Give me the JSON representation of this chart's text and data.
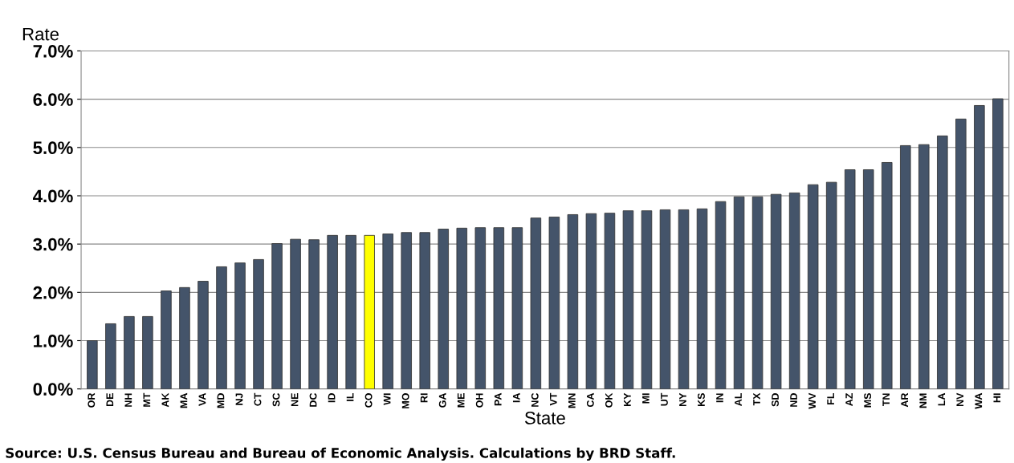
{
  "chart_data": {
    "type": "bar",
    "ylabel": "Rate",
    "xlabel": "State",
    "annotations": [
      "Source: U.S. Census Bureau and Bureau of Economic Analysis. Calculations by BRD Staff."
    ],
    "categories": [
      "OR",
      "DE",
      "NH",
      "MT",
      "AK",
      "MA",
      "VA",
      "MD",
      "NJ",
      "CT",
      "SC",
      "NE",
      "DC",
      "ID",
      "IL",
      "CO",
      "WI",
      "MO",
      "RI",
      "GA",
      "ME",
      "OH",
      "PA",
      "IA",
      "NC",
      "VT",
      "MN",
      "CA",
      "OK",
      "KY",
      "MI",
      "UT",
      "NY",
      "KS",
      "IN",
      "AL",
      "TX",
      "SD",
      "ND",
      "WV",
      "FL",
      "AZ",
      "MS",
      "TN",
      "AR",
      "NM",
      "LA",
      "NV",
      "WA",
      "HI"
    ],
    "values": [
      1.0,
      1.35,
      1.5,
      1.5,
      2.03,
      2.1,
      2.23,
      2.53,
      2.61,
      2.68,
      3.01,
      3.1,
      3.09,
      3.18,
      3.18,
      3.18,
      3.21,
      3.24,
      3.24,
      3.31,
      3.33,
      3.34,
      3.34,
      3.34,
      3.54,
      3.56,
      3.61,
      3.63,
      3.64,
      3.69,
      3.69,
      3.71,
      3.71,
      3.73,
      3.88,
      3.98,
      3.98,
      4.03,
      4.06,
      4.23,
      4.28,
      4.54,
      4.54,
      4.69,
      5.04,
      5.06,
      5.24,
      5.59,
      5.87,
      6.01
    ],
    "colors": [
      "#44546a",
      "#44546a",
      "#44546a",
      "#44546a",
      "#44546a",
      "#44546a",
      "#44546a",
      "#44546a",
      "#44546a",
      "#44546a",
      "#44546a",
      "#44546a",
      "#44546a",
      "#44546a",
      "#44546a",
      "#ffff00",
      "#44546a",
      "#44546a",
      "#44546a",
      "#44546a",
      "#44546a",
      "#44546a",
      "#44546a",
      "#44546a",
      "#44546a",
      "#44546a",
      "#44546a",
      "#44546a",
      "#44546a",
      "#44546a",
      "#44546a",
      "#44546a",
      "#44546a",
      "#44546a",
      "#44546a",
      "#44546a",
      "#44546a",
      "#44546a",
      "#44546a",
      "#44546a",
      "#44546a",
      "#44546a",
      "#44546a",
      "#44546a",
      "#44546a",
      "#44546a",
      "#44546a",
      "#44546a",
      "#44546a",
      "#44546a"
    ],
    "ylim": [
      0,
      7
    ],
    "yticks": [
      {
        "value": 0,
        "label": "0.0%"
      },
      {
        "value": 1,
        "label": "1.0%"
      },
      {
        "value": 2,
        "label": "2.0%"
      },
      {
        "value": 3,
        "label": "3.0%"
      },
      {
        "value": 4,
        "label": "4.0%"
      },
      {
        "value": 5,
        "label": "5.0%"
      },
      {
        "value": 6,
        "label": "6.0%"
      },
      {
        "value": 7,
        "label": "7.0%"
      }
    ],
    "grid": "y"
  }
}
